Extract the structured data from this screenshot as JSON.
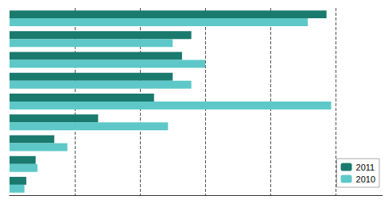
{
  "chart_data": {
    "type": "bar",
    "orientation": "horizontal",
    "categories": [
      null,
      null,
      null,
      null,
      null,
      null,
      null,
      null,
      null
    ],
    "series": [
      {
        "name": "2011",
        "color": "#1a7a6e",
        "values": [
          340,
          195,
          185,
          175,
          155,
          95,
          48,
          28,
          18
        ]
      },
      {
        "name": "2010",
        "color": "#5ec8c8",
        "values": [
          320,
          175,
          210,
          195,
          345,
          170,
          62,
          30,
          16
        ]
      }
    ],
    "xlim": [
      0,
      400
    ],
    "xticks": [
      70,
      140,
      210,
      280,
      350
    ],
    "grid": true,
    "legend": "lower right",
    "tick_labels": false
  }
}
